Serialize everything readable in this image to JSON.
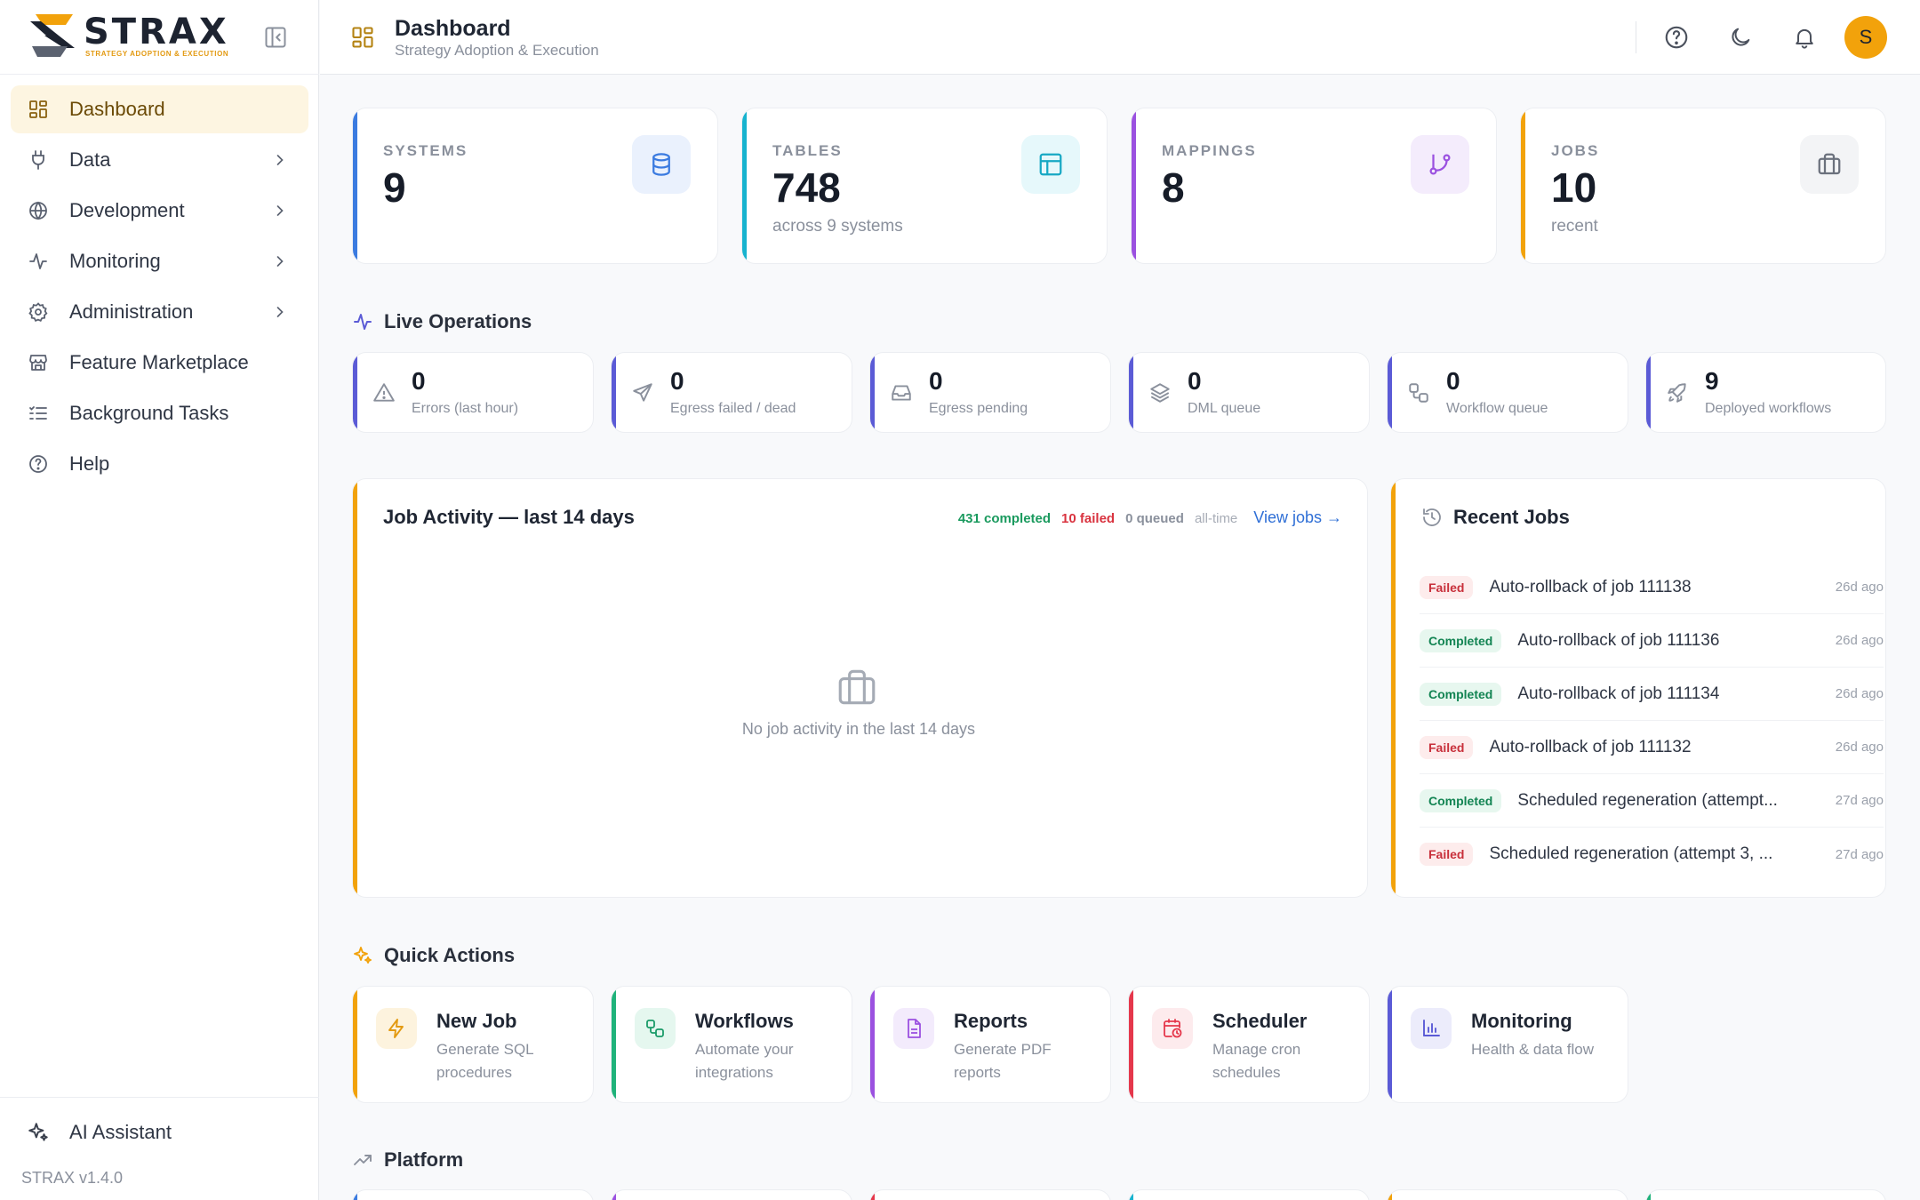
{
  "sidebar": {
    "brand": {
      "name": "STRAX",
      "tagline": "STRATEGY ADOPTION & EXECUTION"
    },
    "items": [
      {
        "label": "Dashboard",
        "icon": "dashboard-icon",
        "active": true
      },
      {
        "label": "Data",
        "icon": "plug-icon",
        "has_children": true
      },
      {
        "label": "Development",
        "icon": "globe-icon",
        "has_children": true
      },
      {
        "label": "Monitoring",
        "icon": "activity-icon",
        "has_children": true
      },
      {
        "label": "Administration",
        "icon": "gear-icon",
        "has_children": true
      },
      {
        "label": "Feature Marketplace",
        "icon": "store-icon"
      },
      {
        "label": "Background Tasks",
        "icon": "list-icon"
      },
      {
        "label": "Help",
        "icon": "help-icon"
      }
    ],
    "ai_assistant": "AI Assistant",
    "version": "STRAX v1.4.0"
  },
  "header": {
    "title": "Dashboard",
    "subtitle": "Strategy Adoption & Execution",
    "avatar_initial": "S"
  },
  "stats": [
    {
      "label": "SYSTEMS",
      "value": "9",
      "sub": "",
      "color": "#3b7be0",
      "icon": "database-icon"
    },
    {
      "label": "TABLES",
      "value": "748",
      "sub": "across 9 systems",
      "color": "#17b3cf",
      "icon": "table-icon"
    },
    {
      "label": "MAPPINGS",
      "value": "8",
      "sub": "",
      "color": "#9b51e0",
      "icon": "branch-icon"
    },
    {
      "label": "JOBS",
      "value": "10",
      "sub": "recent",
      "color": "#f2a20b",
      "icon": "briefcase-icon"
    }
  ],
  "live_operations": {
    "title": "Live Operations",
    "items": [
      {
        "value": "0",
        "label": "Errors (last hour)",
        "icon": "warning-icon"
      },
      {
        "value": "0",
        "label": "Egress failed / dead",
        "icon": "send-icon"
      },
      {
        "value": "0",
        "label": "Egress pending",
        "icon": "inbox-icon"
      },
      {
        "value": "0",
        "label": "DML queue",
        "icon": "layers-icon"
      },
      {
        "value": "0",
        "label": "Workflow queue",
        "icon": "workflow-icon"
      },
      {
        "value": "9",
        "label": "Deployed workflows",
        "icon": "rocket-icon"
      }
    ]
  },
  "job_activity": {
    "title": "Job Activity — last 14 days",
    "completed": "431 completed",
    "failed": "10 failed",
    "queued": "0 queued",
    "period": "all-time",
    "view_link": "View jobs →",
    "empty_text": "No job activity in the last 14 days"
  },
  "recent_jobs": {
    "title": "Recent Jobs",
    "items": [
      {
        "status": "Failed",
        "name": "Auto-rollback of job 111138",
        "time": "26d ago"
      },
      {
        "status": "Completed",
        "name": "Auto-rollback of job 111136",
        "time": "26d ago"
      },
      {
        "status": "Completed",
        "name": "Auto-rollback of job 111134",
        "time": "26d ago"
      },
      {
        "status": "Failed",
        "name": "Auto-rollback of job 111132",
        "time": "26d ago"
      },
      {
        "status": "Completed",
        "name": "Scheduled regeneration (attempt...",
        "time": "27d ago"
      },
      {
        "status": "Failed",
        "name": "Scheduled regeneration (attempt 3, ...",
        "time": "27d ago"
      }
    ]
  },
  "quick_actions": {
    "title": "Quick Actions",
    "items": [
      {
        "title": "New Job",
        "desc": "Generate SQL procedures",
        "color": "#f2a20b",
        "icon": "bolt-icon"
      },
      {
        "title": "Workflows",
        "desc": "Automate your integrations",
        "color": "#1fb27a",
        "icon": "workflow-icon"
      },
      {
        "title": "Reports",
        "desc": "Generate PDF reports",
        "color": "#9b51e0",
        "icon": "document-icon"
      },
      {
        "title": "Scheduler",
        "desc": "Manage cron schedules",
        "color": "#e5374b",
        "icon": "calendar-clock-icon"
      },
      {
        "title": "Monitoring",
        "desc": "Health & data flow",
        "color": "#5b5bd6",
        "icon": "bar-chart-icon"
      }
    ]
  },
  "platform": {
    "title": "Platform"
  }
}
